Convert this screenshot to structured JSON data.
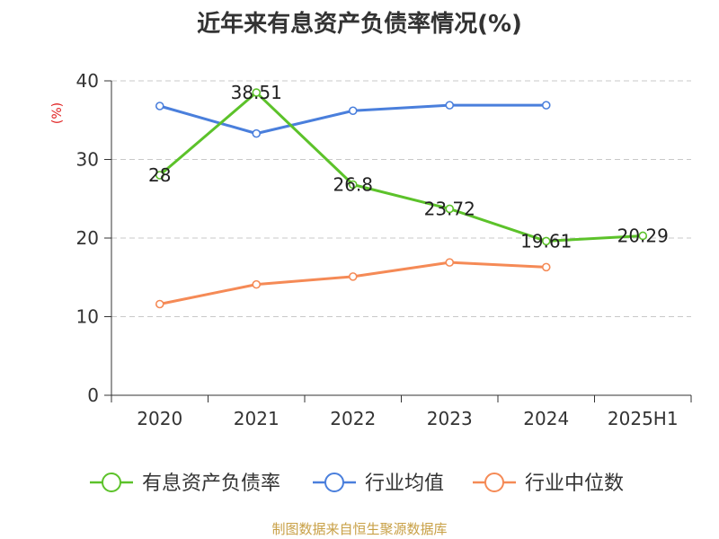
{
  "chart_data": {
    "type": "line",
    "title": "近年来有息资产负债率情况(%)",
    "ylabel": "(%)",
    "xlabel": "",
    "categories": [
      "2020",
      "2021",
      "2022",
      "2023",
      "2024",
      "2025H1"
    ],
    "y_ticks": [
      "0",
      "10",
      "20",
      "30",
      "40"
    ],
    "ylim": [
      0,
      40
    ],
    "grid": true,
    "legend_position": "bottom",
    "series": [
      {
        "name": "有息资产负债率",
        "color": "#5cc22a",
        "values": [
          28,
          38.51,
          26.8,
          23.72,
          19.61,
          20.29
        ],
        "labels": [
          "28",
          "38.51",
          "26.8",
          "23.72",
          "19.61",
          "20.29"
        ]
      },
      {
        "name": "行业均值",
        "color": "#4a7fdc",
        "values": [
          36.8,
          33.3,
          36.2,
          36.9,
          36.9,
          null
        ]
      },
      {
        "name": "行业中位数",
        "color": "#f58a56",
        "values": [
          11.6,
          14.1,
          15.1,
          16.9,
          16.3,
          null
        ]
      }
    ]
  },
  "source": "制图数据来自恒生聚源数据库"
}
